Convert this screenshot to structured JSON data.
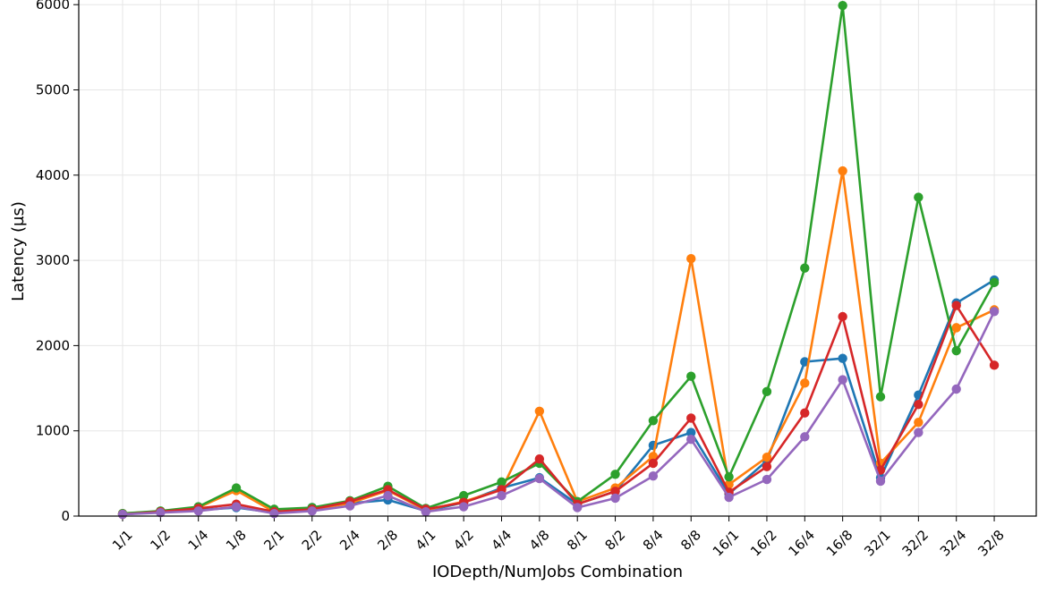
{
  "chart_data": {
    "type": "line",
    "title": "",
    "xlabel": "IODepth/NumJobs Combination",
    "ylabel": "Latency (µs)",
    "ylim": [
      0,
      6000
    ],
    "yticks": [
      0,
      1000,
      2000,
      3000,
      4000,
      5000,
      6000
    ],
    "grid": true,
    "legend": "none",
    "categories": [
      "1/1",
      "1/2",
      "1/4",
      "1/8",
      "2/1",
      "2/2",
      "2/4",
      "2/8",
      "4/1",
      "4/2",
      "4/4",
      "4/8",
      "8/1",
      "8/2",
      "8/4",
      "8/8",
      "16/1",
      "16/2",
      "16/4",
      "16/8",
      "32/1",
      "32/2",
      "32/4",
      "32/8"
    ],
    "series": [
      {
        "color": "#1f77b4",
        "values": [
          20,
          50,
          70,
          100,
          40,
          100,
          150,
          190,
          60,
          160,
          330,
          450,
          140,
          290,
          830,
          980,
          260,
          650,
          1810,
          1850,
          450,
          1420,
          2500,
          2770
        ]
      },
      {
        "color": "#ff7f0e",
        "values": [
          30,
          55,
          100,
          300,
          50,
          80,
          150,
          300,
          70,
          170,
          310,
          1230,
          170,
          330,
          700,
          3020,
          370,
          690,
          1560,
          4050,
          620,
          1100,
          2210,
          2420
        ]
      },
      {
        "color": "#2ca02c",
        "values": [
          30,
          60,
          110,
          330,
          80,
          100,
          180,
          350,
          90,
          240,
          400,
          620,
          170,
          490,
          1120,
          1640,
          460,
          1460,
          2910,
          5990,
          1400,
          3740,
          1940,
          2740
        ]
      },
      {
        "color": "#d62728",
        "values": [
          20,
          50,
          90,
          140,
          50,
          80,
          170,
          310,
          80,
          160,
          310,
          670,
          140,
          290,
          620,
          1150,
          280,
          580,
          1210,
          2340,
          540,
          1310,
          2470,
          1770
        ]
      },
      {
        "color": "#9467bd",
        "values": [
          20,
          40,
          60,
          110,
          30,
          60,
          120,
          240,
          50,
          110,
          240,
          440,
          100,
          210,
          470,
          900,
          220,
          430,
          930,
          1600,
          410,
          980,
          1490,
          2400
        ]
      }
    ]
  }
}
